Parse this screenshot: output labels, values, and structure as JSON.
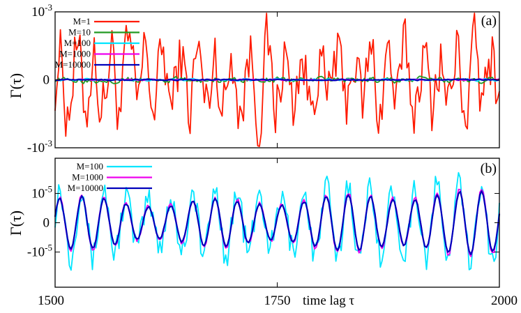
{
  "chart_data": [
    {
      "type": "line",
      "panel_label": "(a)",
      "ylabel": "Γ(τ)",
      "xlabel": "",
      "xlim": [
        1500,
        2000
      ],
      "ylim": [
        -0.001,
        0.001
      ],
      "ytick_labels": [
        {
          "value": 0.001,
          "base": "10",
          "exp": "-3"
        },
        {
          "value": 0,
          "base": "0",
          "exp": ""
        },
        {
          "value": -0.001,
          "base": "-10",
          "exp": "-3"
        }
      ],
      "x_ticks": [
        1500,
        1750,
        2000
      ],
      "legend_position": "top-left",
      "series": [
        {
          "name": "M=1",
          "color": "#ff1a00",
          "amplitude": 0.00035,
          "jitter": 0.0004
        },
        {
          "name": "M=10",
          "color": "#229922",
          "amplitude": 3.5e-05,
          "jitter": 1e-05
        },
        {
          "name": "M=100",
          "color": "#00e5ff",
          "amplitude": 1.2e-05,
          "jitter": 6e-06
        },
        {
          "name": "M=1000",
          "color": "#ee00ee",
          "amplitude": 8e-06,
          "jitter": 2e-06
        },
        {
          "name": "M=10000",
          "color": "#0000bb",
          "amplitude": 8e-06,
          "jitter": 1.5e-06
        }
      ]
    },
    {
      "type": "line",
      "panel_label": "(b)",
      "ylabel": "Γ(τ)",
      "xlabel": "time lag τ",
      "xlim": [
        1500,
        2000
      ],
      "ylim": [
        -2.2e-05,
        2.2e-05
      ],
      "ytick_labels": [
        {
          "value": 1e-05,
          "base": "10",
          "exp": "-5"
        },
        {
          "value": 0,
          "base": "0",
          "exp": ""
        },
        {
          "value": -1e-05,
          "base": "-10",
          "exp": "-5"
        }
      ],
      "x_ticks": [
        1500,
        1750,
        2000
      ],
      "x_tick_labels": [
        "1500",
        "1750",
        "2000"
      ],
      "legend_position": "top-left",
      "oscillation_period": 25,
      "series": [
        {
          "name": "M=100",
          "color": "#00e5ff",
          "amplitude": 1.1e-05,
          "jitter": 5e-06
        },
        {
          "name": "M=1000",
          "color": "#ee00ee",
          "amplitude": 8.5e-06,
          "jitter": 6e-07
        },
        {
          "name": "M=10000",
          "color": "#0000bb",
          "amplitude": 8e-06,
          "jitter": 3e-07
        }
      ]
    }
  ]
}
